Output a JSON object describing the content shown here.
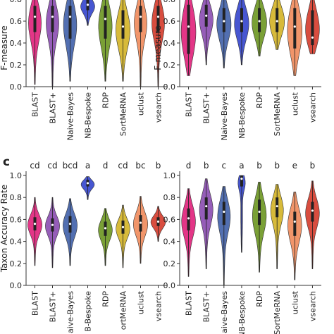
{
  "panel_letters": {
    "c": "c"
  },
  "violin_colors": [
    "#e0207a",
    "#8a4bb0",
    "#3f5fa8",
    "#3344cc",
    "#6b9620",
    "#d3b325",
    "#f08a5a",
    "#d43a2a"
  ],
  "chart_data": [
    {
      "id": "top-left",
      "type": "violin",
      "categories": [
        "BLAST",
        "BLAST+",
        "Naive-Bayes",
        "NB-Bespoke",
        "RDP",
        "SortMeRNA",
        "uclust",
        "vsearch"
      ],
      "ylabel": "F-measure",
      "ylim": [
        0.0,
        0.8
      ],
      "yticks": [
        "0.0",
        "0.2",
        "0.4",
        "0.6",
        "0.8"
      ],
      "ytick_values": [
        0.0,
        0.2,
        0.4,
        0.6,
        0.8
      ],
      "violins": [
        {
          "min": 0.02,
          "max": 0.85,
          "median": 0.64,
          "q1": 0.5,
          "q3": 0.74
        },
        {
          "min": 0.0,
          "max": 0.85,
          "median": 0.64,
          "q1": 0.5,
          "q3": 0.74
        },
        {
          "min": 0.05,
          "max": 0.85,
          "median": 0.64,
          "q1": 0.44,
          "q3": 0.74
        },
        {
          "min": 0.56,
          "max": 0.85,
          "median": 0.75,
          "q1": 0.7,
          "q3": 0.8
        },
        {
          "min": 0.05,
          "max": 0.85,
          "median": 0.62,
          "q1": 0.44,
          "q3": 0.74
        },
        {
          "min": 0.05,
          "max": 0.85,
          "median": 0.55,
          "q1": 0.44,
          "q3": 0.7
        },
        {
          "min": 0.0,
          "max": 0.85,
          "median": 0.64,
          "q1": 0.5,
          "q3": 0.74
        },
        {
          "min": 0.0,
          "max": 0.85,
          "median": 0.64,
          "q1": 0.5,
          "q3": 0.74
        }
      ]
    },
    {
      "id": "top-right",
      "type": "violin",
      "categories": [
        "BLAST",
        "BLAST+",
        "Naive-Bayes",
        "NB-Bespoke",
        "RDP",
        "SortMeRNA",
        "uclust",
        "vsearch"
      ],
      "ylabel": "F-measure",
      "ylim": [
        0.0,
        0.8
      ],
      "yticks": [
        "0.0",
        "0.2",
        "0.4",
        "0.6",
        "0.8"
      ],
      "ytick_values": [
        0.0,
        0.2,
        0.4,
        0.6,
        0.8
      ],
      "violins": [
        {
          "min": 0.1,
          "max": 0.85,
          "median": 0.55,
          "q1": 0.3,
          "q3": 0.75
        },
        {
          "min": 0.2,
          "max": 0.85,
          "median": 0.65,
          "q1": 0.55,
          "q3": 0.75
        },
        {
          "min": 0.17,
          "max": 0.85,
          "median": 0.6,
          "q1": 0.5,
          "q3": 0.72
        },
        {
          "min": 0.2,
          "max": 0.85,
          "median": 0.6,
          "q1": 0.5,
          "q3": 0.72
        },
        {
          "min": 0.28,
          "max": 0.85,
          "median": 0.6,
          "q1": 0.5,
          "q3": 0.72
        },
        {
          "min": 0.34,
          "max": 0.85,
          "median": 0.6,
          "q1": 0.5,
          "q3": 0.72
        },
        {
          "min": 0.1,
          "max": 0.85,
          "median": 0.55,
          "q1": 0.35,
          "q3": 0.72
        },
        {
          "min": 0.3,
          "max": 0.85,
          "median": 0.45,
          "q1": 0.38,
          "q3": 0.7
        }
      ]
    },
    {
      "id": "bottom-left",
      "type": "violin",
      "categories": [
        "BLAST",
        "BLAST+",
        "Naive-Bayes",
        "NB-Bespoke",
        "RDP",
        "SortMeRNA",
        "uclust",
        "vsearch"
      ],
      "tick_labels": [
        "BLAST",
        "BLAST+",
        "aive-Bayes",
        "B-Bespoke",
        "RDP",
        "ortMeRNA",
        "uclust",
        "vsearch"
      ],
      "ylabel": "Taxon Accuracy Rate",
      "ylim": [
        0.0,
        1.0
      ],
      "yticks": [
        "0.0",
        "0.2",
        "0.4",
        "0.6",
        "0.8",
        "1.0"
      ],
      "ytick_values": [
        0.0,
        0.2,
        0.4,
        0.6,
        0.8,
        1.0
      ],
      "significance_letters": [
        "cd",
        "cd",
        "bcd",
        "a",
        "d",
        "cd",
        "bc",
        "b"
      ],
      "violins": [
        {
          "min": 0.18,
          "max": 0.8,
          "median": 0.56,
          "q1": 0.5,
          "q3": 0.62
        },
        {
          "min": 0.16,
          "max": 0.8,
          "median": 0.55,
          "q1": 0.49,
          "q3": 0.61
        },
        {
          "min": 0.18,
          "max": 0.79,
          "median": 0.56,
          "q1": 0.48,
          "q3": 0.63
        },
        {
          "min": 0.78,
          "max": 0.99,
          "median": 0.93,
          "q1": 0.9,
          "q3": 0.96
        },
        {
          "min": 0.18,
          "max": 0.7,
          "median": 0.52,
          "q1": 0.45,
          "q3": 0.58
        },
        {
          "min": 0.16,
          "max": 0.73,
          "median": 0.53,
          "q1": 0.47,
          "q3": 0.59
        },
        {
          "min": 0.2,
          "max": 0.81,
          "median": 0.57,
          "q1": 0.49,
          "q3": 0.64
        },
        {
          "min": 0.4,
          "max": 0.72,
          "median": 0.58,
          "q1": 0.54,
          "q3": 0.62
        }
      ]
    },
    {
      "id": "bottom-right",
      "type": "violin",
      "categories": [
        "BLAST",
        "BLAST+",
        "Naive-Bayes",
        "NB-Bespoke",
        "RDP",
        "SortMeRNA",
        "uclust",
        "vsearch"
      ],
      "tick_labels": [
        "BLAST",
        "BLAST+",
        "Naive-Bayes",
        "NB-Bespoke",
        "RDP",
        "SortMeRNA",
        "uclust",
        "vsearch"
      ],
      "ylim": [
        0.0,
        1.0
      ],
      "yticks": [
        "0.0",
        "0.2",
        "0.4",
        "0.6",
        "0.8",
        "1.0"
      ],
      "ytick_values": [
        0.0,
        0.2,
        0.4,
        0.6,
        0.8,
        1.0
      ],
      "significance_letters": [
        "d",
        "b",
        "c",
        "a",
        "b",
        "b",
        "e",
        "b"
      ],
      "violins": [
        {
          "min": 0.08,
          "max": 0.88,
          "median": 0.61,
          "q1": 0.5,
          "q3": 0.7
        },
        {
          "min": 0.15,
          "max": 0.97,
          "median": 0.72,
          "q1": 0.6,
          "q3": 0.8
        },
        {
          "min": 0.0,
          "max": 0.9,
          "median": 0.67,
          "q1": 0.55,
          "q3": 0.76
        },
        {
          "min": 0.3,
          "max": 1.0,
          "median": 0.97,
          "q1": 0.9,
          "q3": 1.0
        },
        {
          "min": 0.12,
          "max": 0.94,
          "median": 0.67,
          "q1": 0.55,
          "q3": 0.78
        },
        {
          "min": 0.15,
          "max": 0.92,
          "median": 0.72,
          "q1": 0.62,
          "q3": 0.8
        },
        {
          "min": 0.05,
          "max": 0.85,
          "median": 0.58,
          "q1": 0.45,
          "q3": 0.67
        },
        {
          "min": 0.15,
          "max": 0.95,
          "median": 0.68,
          "q1": 0.58,
          "q3": 0.76
        }
      ]
    }
  ]
}
